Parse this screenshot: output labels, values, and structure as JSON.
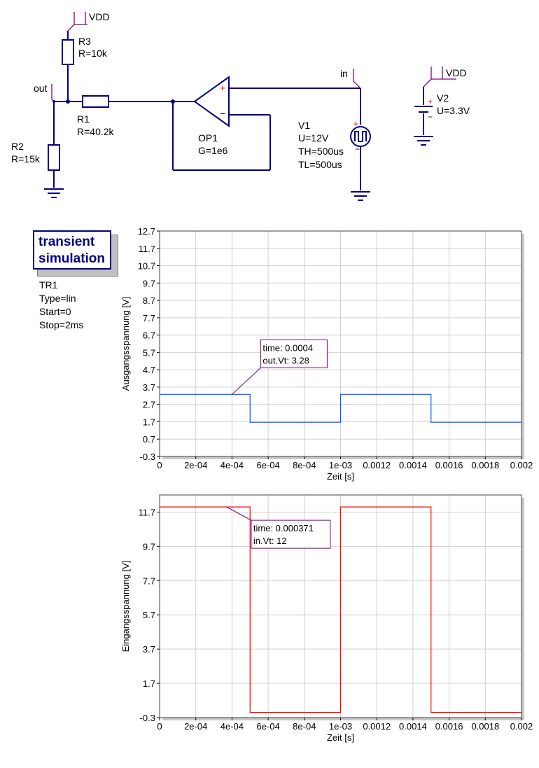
{
  "schematic": {
    "vdd_top": "VDD",
    "r3": {
      "name": "R3",
      "value": "R=10k"
    },
    "out_label": "out",
    "r1": {
      "name": "R1",
      "value": "R=40.2k"
    },
    "r2": {
      "name": "R2",
      "value": "R=15k"
    },
    "op1": {
      "name": "OP1",
      "gain": "G=1e6"
    },
    "in_label": "in",
    "v1": {
      "name": "V1",
      "u": "U=12V",
      "th": "TH=500us",
      "tl": "TL=500us"
    },
    "vdd_right": "VDD",
    "v2": {
      "name": "V2",
      "u": "U=3.3V"
    }
  },
  "simulation": {
    "title_line1": "transient",
    "title_line2": "simulation",
    "name": "TR1",
    "type": "Type=lin",
    "start": "Start=0",
    "stop": "Stop=2ms"
  },
  "colors": {
    "wire": "#000080",
    "trace_out": "#0055ff",
    "trace_in": "#ff0000",
    "marker": "#800080"
  },
  "chart_data": [
    {
      "type": "line",
      "xlabel": "Zeit [s]",
      "ylabel": "Ausgangsspannung [V]",
      "xlim": [
        0,
        0.002
      ],
      "ylim": [
        -0.3,
        12.7
      ],
      "xticks": [
        "0",
        "2e-04",
        "4e-04",
        "6e-04",
        "8e-04",
        "1e-03",
        "0.0012",
        "0.0014",
        "0.0016",
        "0.0018",
        "0.002"
      ],
      "yticks": [
        "12.7",
        "11.7",
        "10.7",
        "9.7",
        "8.7",
        "7.7",
        "6.7",
        "5.7",
        "4.7",
        "3.7",
        "2.7",
        "1.7",
        "0.7",
        "-0.3"
      ],
      "grid": true,
      "series": [
        {
          "name": "out.Vt",
          "x": [
            0,
            0.0005,
            0.0005,
            0.001,
            0.001,
            0.0015,
            0.0015,
            0.002
          ],
          "y": [
            3.28,
            3.28,
            1.67,
            1.67,
            3.28,
            3.28,
            1.67,
            1.67
          ]
        }
      ],
      "marker": {
        "x": 0.0004,
        "y": 3.28,
        "line1": "time: 0.0004",
        "line2": "out.Vt: 3.28"
      }
    },
    {
      "type": "line",
      "xlabel": "Zeit [s]",
      "ylabel": "Eingangsspannung [V]",
      "xlim": [
        0,
        0.002
      ],
      "ylim": [
        -0.3,
        12.7
      ],
      "xticks": [
        "0",
        "2e-04",
        "4e-04",
        "6e-04",
        "8e-04",
        "1e-03",
        "0.0012",
        "0.0014",
        "0.0016",
        "0.0018",
        "0.002"
      ],
      "yticks": [
        "11.7",
        "9.7",
        "7.7",
        "5.7",
        "3.7",
        "1.7",
        "-0.3"
      ],
      "grid": true,
      "series": [
        {
          "name": "in.Vt",
          "x": [
            0,
            0.0005,
            0.0005,
            0.001,
            0.001,
            0.0015,
            0.0015,
            0.002
          ],
          "y": [
            12,
            12,
            0,
            0,
            12,
            12,
            0,
            0
          ]
        }
      ],
      "marker": {
        "x": 0.000371,
        "y": 12,
        "line1": "time: 0.000371",
        "line2": "in.Vt: 12"
      }
    }
  ]
}
